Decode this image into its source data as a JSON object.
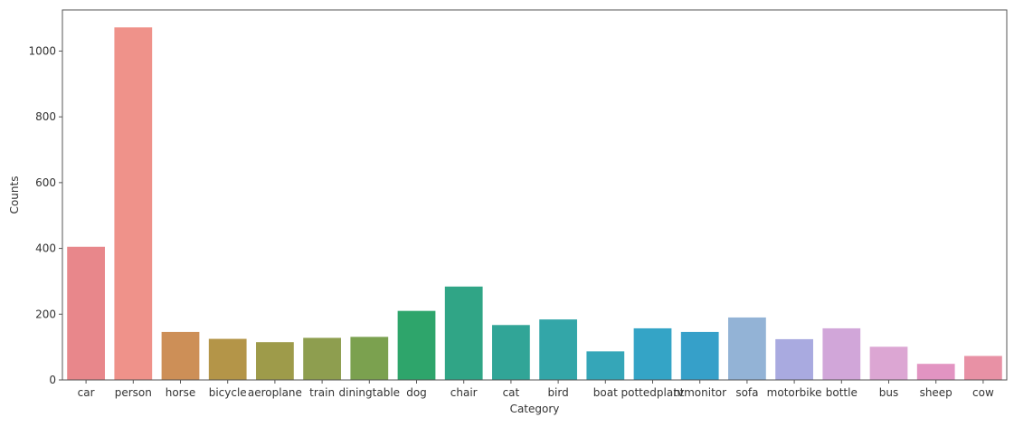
{
  "chart_data": {
    "type": "bar",
    "title": "",
    "xlabel": "Category",
    "ylabel": "Counts",
    "categories": [
      "car",
      "person",
      "horse",
      "bicycle",
      "aeroplane",
      "train",
      "diningtable",
      "dog",
      "chair",
      "cat",
      "bird",
      "boat",
      "pottedplant",
      "tvmonitor",
      "sofa",
      "motorbike",
      "bottle",
      "bus",
      "sheep",
      "cow"
    ],
    "values": [
      405,
      1072,
      146,
      125,
      115,
      128,
      131,
      210,
      284,
      167,
      184,
      87,
      157,
      146,
      190,
      124,
      157,
      101,
      49,
      73
    ],
    "colors": [
      "#e8878b",
      "#ef928a",
      "#cd8f57",
      "#b49548",
      "#9e9b4a",
      "#8e9e4f",
      "#7ba14f",
      "#2ea56b",
      "#30a586",
      "#31a597",
      "#33a6a8",
      "#35a6b8",
      "#34a4c6",
      "#36a0c9",
      "#93b3d6",
      "#a9aae0",
      "#d1a6d9",
      "#dca6d3",
      "#e294c2",
      "#e891a5"
    ],
    "yticks": [
      0,
      200,
      400,
      600,
      800,
      1000
    ],
    "ylim": [
      0,
      1125
    ],
    "grid": false,
    "legend": "none"
  }
}
